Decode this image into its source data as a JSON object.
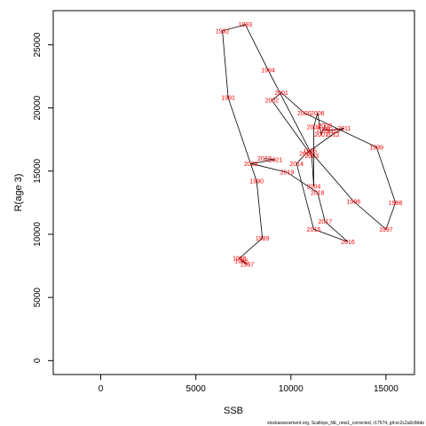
{
  "chart_data": {
    "type": "line",
    "title": "",
    "xlabel": "SSB",
    "ylabel": "R(age 3)",
    "xlim": [
      -2500,
      16500
    ],
    "ylim": [
      -1100,
      27700
    ],
    "xticks": [
      0,
      5000,
      10000,
      15000
    ],
    "yticks": [
      0,
      5000,
      10000,
      15000,
      20000,
      25000
    ],
    "grid": false,
    "legend": "none",
    "line_color": "#000000",
    "label_color": "#ff0000",
    "series": [
      {
        "points": [
          {
            "year": "1986",
            "x": 7400,
            "y": 7900
          },
          {
            "year": "1987",
            "x": 7700,
            "y": 7600
          },
          {
            "year": "1988",
            "x": 7300,
            "y": 8100
          },
          {
            "year": "1989",
            "x": 8500,
            "y": 9700
          },
          {
            "year": "1990",
            "x": 8200,
            "y": 14200
          },
          {
            "year": "1991",
            "x": 6700,
            "y": 20800
          },
          {
            "year": "1992",
            "x": 6400,
            "y": 26100
          },
          {
            "year": "1993",
            "x": 7600,
            "y": 26600
          },
          {
            "year": "1994",
            "x": 8800,
            "y": 23000
          },
          {
            "year": "1995",
            "x": 11000,
            "y": 16600
          },
          {
            "year": "1996",
            "x": 13300,
            "y": 12600
          },
          {
            "year": "1997",
            "x": 15000,
            "y": 10400
          },
          {
            "year": "1998",
            "x": 15500,
            "y": 12500
          },
          {
            "year": "1999",
            "x": 14500,
            "y": 16900
          },
          {
            "year": "2000",
            "x": 10700,
            "y": 19600
          },
          {
            "year": "2001",
            "x": 9500,
            "y": 21200
          },
          {
            "year": "2002",
            "x": 9000,
            "y": 20600
          },
          {
            "year": "2003",
            "x": 11100,
            "y": 16200
          },
          {
            "year": "2004",
            "x": 11200,
            "y": 13800
          },
          {
            "year": "2005",
            "x": 11200,
            "y": 18500
          },
          {
            "year": "2006",
            "x": 11400,
            "y": 19600
          },
          {
            "year": "2007",
            "x": 11600,
            "y": 17900
          },
          {
            "year": "2008",
            "x": 11800,
            "y": 18600
          },
          {
            "year": "2009",
            "x": 11700,
            "y": 18300
          },
          {
            "year": "2010",
            "x": 12100,
            "y": 18200
          },
          {
            "year": "2011",
            "x": 12800,
            "y": 18400
          },
          {
            "year": "2012",
            "x": 12200,
            "y": 17900
          },
          {
            "year": "2013",
            "x": 10800,
            "y": 16400
          },
          {
            "year": "2014",
            "x": 10300,
            "y": 15600
          },
          {
            "year": "2015",
            "x": 11200,
            "y": 10400
          },
          {
            "year": "2016",
            "x": 13000,
            "y": 9400
          },
          {
            "year": "2017",
            "x": 11800,
            "y": 11000
          },
          {
            "year": "2018",
            "x": 11400,
            "y": 13300
          },
          {
            "year": "2019",
            "x": 9800,
            "y": 14900
          },
          {
            "year": "2020",
            "x": 7900,
            "y": 15600
          },
          {
            "year": "2021",
            "x": 9200,
            "y": 15900
          },
          {
            "year": "2022",
            "x": 8600,
            "y": 16000
          }
        ]
      }
    ]
  },
  "footnote": "stockassessment.org, Scallops_NE_new1_corrected, r17574, git:ec2c2a0c8dde"
}
